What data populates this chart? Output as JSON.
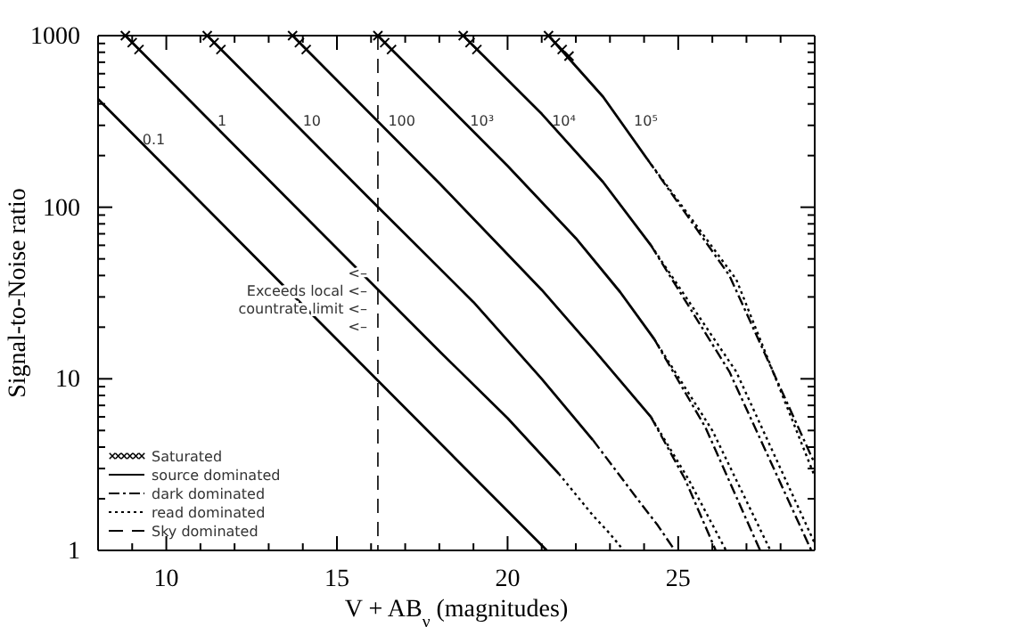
{
  "chart_data": {
    "type": "line",
    "xlabel": "V + AB$_{ν}$ (magnitudes)",
    "ylabel": "Signal-to-Noise ratio",
    "xlim": [
      8,
      29
    ],
    "ylim": [
      1,
      1000
    ],
    "log": "y",
    "grid": false,
    "legend": "bottom left",
    "xticks": [
      {
        "value": 8,
        "label": null
      },
      {
        "value": 9,
        "label": null
      },
      10,
      {
        "value": 11,
        "label": null
      },
      {
        "value": 12,
        "label": null
      },
      {
        "value": 13,
        "label": null
      },
      {
        "value": 14,
        "label": null
      },
      15,
      {
        "value": 16,
        "label": null
      },
      {
        "value": 17,
        "label": null
      },
      {
        "value": 18,
        "label": null
      },
      {
        "value": 19,
        "label": null
      },
      20,
      {
        "value": 21,
        "label": null
      },
      {
        "value": 22,
        "label": null
      },
      {
        "value": 23,
        "label": null
      },
      {
        "value": 24,
        "label": null
      },
      25,
      {
        "value": 26,
        "label": null
      },
      {
        "value": 27,
        "label": null
      },
      {
        "value": 28,
        "label": null
      }
    ],
    "yticks": [
      1,
      {
        "value": 2,
        "label": null
      },
      {
        "value": 3,
        "label": null
      },
      {
        "value": 4,
        "label": null
      },
      {
        "value": 5,
        "label": null
      },
      {
        "value": 6,
        "label": null
      },
      {
        "value": 7,
        "label": null
      },
      {
        "value": 8,
        "label": null
      },
      {
        "value": 9,
        "label": null
      },
      10,
      {
        "value": 20,
        "label": null
      },
      {
        "value": 30,
        "label": null
      },
      {
        "value": 40,
        "label": null
      },
      {
        "value": 50,
        "label": null
      },
      {
        "value": 60,
        "label": null
      },
      {
        "value": 70,
        "label": null
      },
      {
        "value": 80,
        "label": null
      },
      {
        "value": 90,
        "label": null
      },
      100,
      {
        "value": 200,
        "label": null
      },
      {
        "value": 300,
        "label": null
      },
      {
        "value": 400,
        "label": null
      },
      {
        "value": 500,
        "label": null
      },
      {
        "value": 600,
        "label": null
      },
      {
        "value": 700,
        "label": null
      },
      {
        "value": 800,
        "label": null
      },
      {
        "value": 900,
        "label": null
      },
      1000
    ],
    "ref_lines": [
      {
        "axis": "x",
        "value": 16.2,
        "line_style": "dashed",
        "color": "#000000"
      }
    ],
    "annotations": [
      {
        "text": "0.1",
        "x": 9.3,
        "y": 234
      },
      {
        "text": "1",
        "x": 11.5,
        "y": 300
      },
      {
        "text": "10",
        "x": 14.0,
        "y": 300
      },
      {
        "text": "100",
        "x": 16.5,
        "y": 300
      },
      {
        "text": "10³",
        "x": 18.9,
        "y": 300
      },
      {
        "text": "10⁴",
        "x": 21.3,
        "y": 300
      },
      {
        "text": "10⁵",
        "x": 23.7,
        "y": 300
      },
      "<–",
      "Exceeds local  <–",
      "countrate limit  <–",
      "<–"
    ],
    "series": [
      {
        "name": "Saturated",
        "type": "scatter",
        "marker": "cross",
        "color": "#000000",
        "x": [
          8.8,
          9.0,
          9.2,
          11.2,
          11.4,
          11.6,
          13.7,
          13.9,
          14.1,
          16.2,
          16.4,
          16.6,
          18.7,
          18.9,
          19.1,
          21.2,
          21.4,
          21.6,
          21.8
        ],
        "values": [
          1000,
          910,
          830,
          1000,
          910,
          830,
          1000,
          910,
          830,
          1000,
          910,
          830,
          1000,
          910,
          830,
          1000,
          910,
          830,
          760
        ]
      },
      {
        "name": "source dominated",
        "type": "line",
        "line_style": "solid",
        "color": "#000000",
        "x": [
          8,
          14.6,
          21.15
        ],
        "values": [
          427,
          20.4,
          1
        ]
      },
      {
        "name": "dark dominated",
        "line_style": "dashdot",
        "color": "#000000",
        "x": [
          22.5,
          23.8,
          24.4,
          24.9
        ],
        "values": [
          4.4,
          2,
          1.4,
          1
        ]
      },
      {
        "name": "read dominated",
        "line_style": "dotted",
        "color": "#000000",
        "x": [
          21.5,
          22.5,
          23.0,
          23.4
        ],
        "values": [
          2.8,
          1.6,
          1.25,
          1
        ]
      },
      {
        "line_style": "solid",
        "color": "#000000",
        "x": [
          8.8,
          14,
          18,
          20,
          21.5
        ],
        "values": [
          1000,
          91,
          14.5,
          5.9,
          2.8
        ]
      },
      {
        "line_style": "solid",
        "color": "#000000",
        "x": [
          11.2,
          16,
          19,
          21,
          22.5
        ],
        "values": [
          1000,
          110,
          28,
          10,
          4.4
        ]
      },
      {
        "line_style": "solid",
        "color": "#000000",
        "x": [
          13.7,
          18,
          21,
          22.5,
          24.2
        ],
        "values": [
          1000,
          138,
          33,
          15,
          6
        ]
      },
      {
        "line_style": "dashdot",
        "color": "#000000",
        "x": [
          24.2,
          25.2,
          26.1
        ],
        "values": [
          6,
          2.6,
          1
        ]
      },
      {
        "line_style": "dotted",
        "color": "#000000",
        "x": [
          24.2,
          25.3,
          26.4
        ],
        "values": [
          6,
          2.6,
          1
        ]
      },
      {
        "line_style": "solid",
        "color": "#000000",
        "x": [
          16.2,
          20,
          22,
          23.3,
          24.3
        ],
        "values": [
          1000,
          174,
          66,
          32,
          17
        ]
      },
      {
        "line_style": "dashdot",
        "color": "#000000",
        "x": [
          24.3,
          25.8,
          27.4
        ],
        "values": [
          17,
          5.2,
          1
        ]
      },
      {
        "line_style": "dotted",
        "color": "#000000",
        "x": [
          24.3,
          26,
          27.7
        ],
        "values": [
          17,
          5,
          1
        ]
      },
      {
        "line_style": "solid",
        "color": "#000000",
        "x": [
          18.7,
          21,
          22.8,
          24.2
        ],
        "values": [
          1000,
          350,
          140,
          60
        ]
      },
      {
        "line_style": "dashdot",
        "color": "#000000",
        "x": [
          24.2,
          26.5,
          28.9
        ],
        "values": [
          60,
          11,
          1
        ]
      },
      {
        "line_style": "dotted",
        "color": "#000000",
        "x": [
          24.2,
          26.7,
          29
        ],
        "values": [
          60,
          11,
          1.1
        ]
      },
      {
        "line_style": "solid",
        "color": "#000000",
        "x": [
          21.2,
          22.8,
          24.1
        ],
        "values": [
          1000,
          440,
          190
        ]
      },
      {
        "line_style": "dashdot",
        "color": "#000000",
        "x": [
          24.1,
          26.5,
          29
        ],
        "values": [
          190,
          40,
          3.2
        ]
      },
      {
        "line_style": "dotted",
        "color": "#000000",
        "x": [
          24.1,
          26.7,
          29
        ],
        "values": [
          190,
          38,
          2.7
        ]
      },
      {
        "name": "Sky dominated",
        "line_style": "dashed",
        "color": "#000000"
      }
    ]
  }
}
